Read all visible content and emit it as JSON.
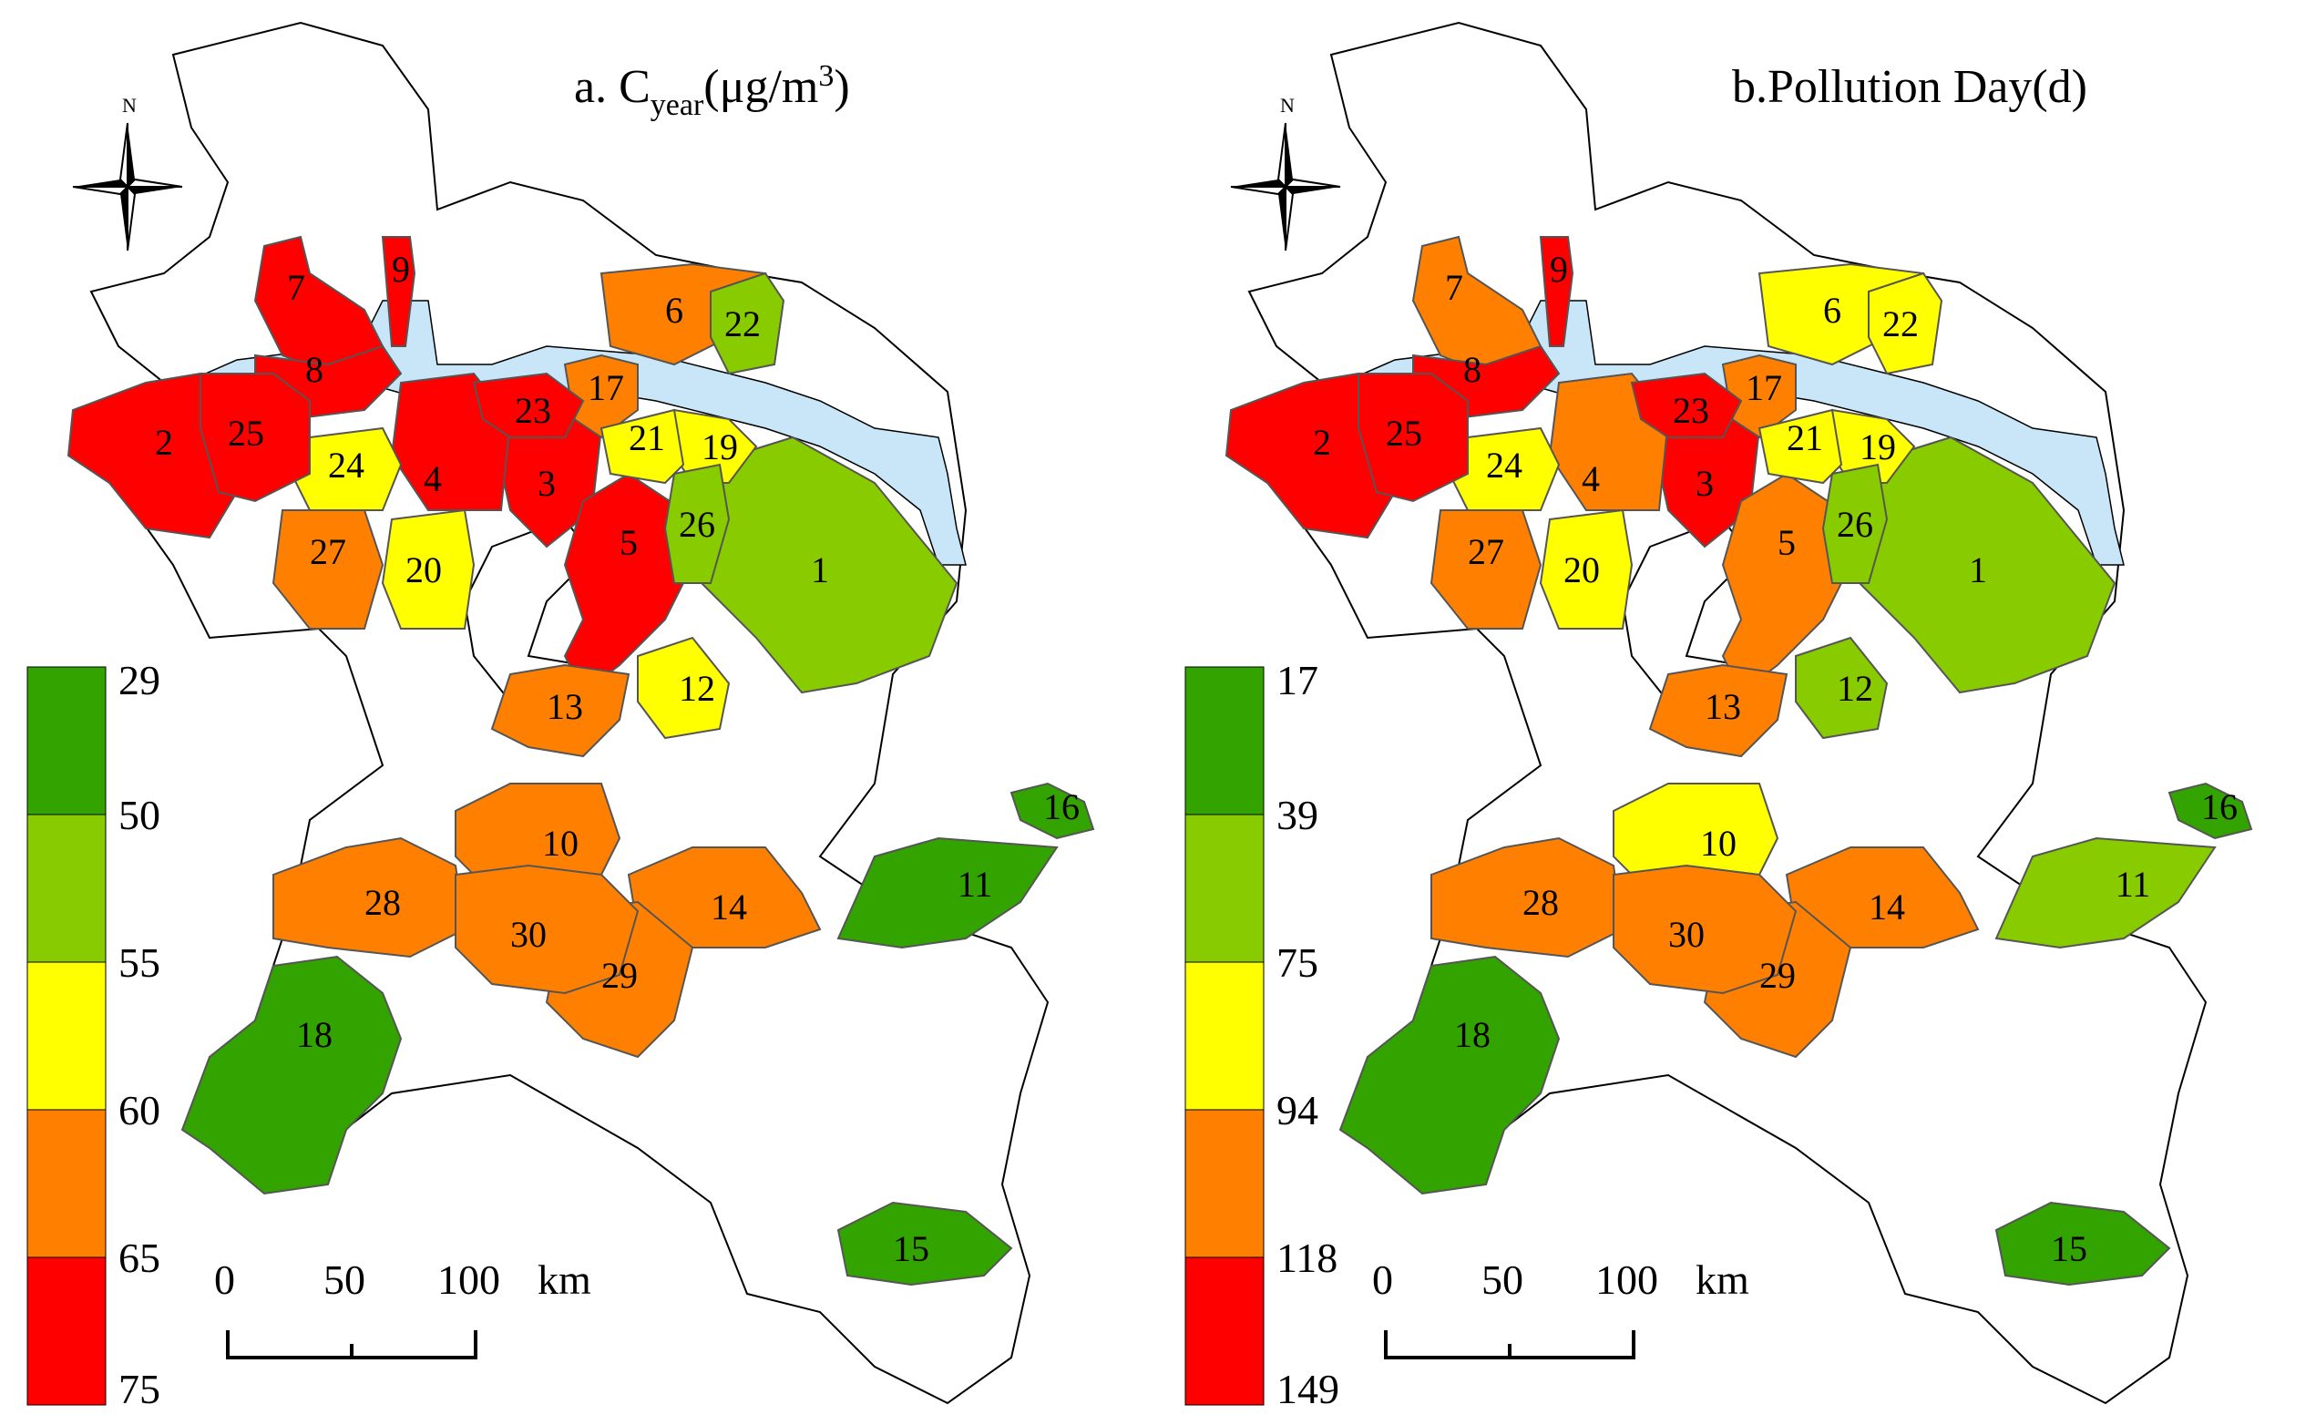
{
  "panels": [
    {
      "id": "a",
      "title_main": "a. C",
      "title_sub": "year",
      "title_unit": "(μg/m",
      "title_sup": "3",
      "title_close": ")",
      "north_label": "N",
      "legend": {
        "labels": [
          "29",
          "50",
          "55",
          "60",
          "65",
          "75"
        ],
        "colors": [
          "#33a300",
          "#88cc00",
          "#ffff00",
          "#ff8000",
          "#ff0000"
        ]
      },
      "scale_bar": {
        "labels": [
          "0",
          "50",
          "100"
        ],
        "unit": "km"
      },
      "regions": [
        {
          "id": "1",
          "label": "1",
          "class": "50-55"
        },
        {
          "id": "2",
          "label": "2",
          "class": "65-75"
        },
        {
          "id": "3",
          "label": "3",
          "class": "65-75"
        },
        {
          "id": "4",
          "label": "4",
          "class": "65-75"
        },
        {
          "id": "5",
          "label": "5",
          "class": "65-75"
        },
        {
          "id": "6",
          "label": "6",
          "class": "60-65"
        },
        {
          "id": "7",
          "label": "7",
          "class": "65-75"
        },
        {
          "id": "8",
          "label": "8",
          "class": "65-75"
        },
        {
          "id": "9",
          "label": "9",
          "class": "65-75"
        },
        {
          "id": "10",
          "label": "10",
          "class": "60-65"
        },
        {
          "id": "11",
          "label": "11",
          "class": "29-50"
        },
        {
          "id": "12",
          "label": "12",
          "class": "55-60"
        },
        {
          "id": "13",
          "label": "13",
          "class": "60-65"
        },
        {
          "id": "14",
          "label": "14",
          "class": "60-65"
        },
        {
          "id": "15",
          "label": "15",
          "class": "29-50"
        },
        {
          "id": "16",
          "label": "16",
          "class": "29-50"
        },
        {
          "id": "17",
          "label": "17",
          "class": "60-65"
        },
        {
          "id": "18",
          "label": "18",
          "class": "29-50"
        },
        {
          "id": "19",
          "label": "19",
          "class": "55-60"
        },
        {
          "id": "20",
          "label": "20",
          "class": "55-60"
        },
        {
          "id": "21",
          "label": "21",
          "class": "55-60"
        },
        {
          "id": "22",
          "label": "22",
          "class": "50-55"
        },
        {
          "id": "23",
          "label": "23",
          "class": "65-75"
        },
        {
          "id": "24",
          "label": "24",
          "class": "55-60"
        },
        {
          "id": "25",
          "label": "25",
          "class": "65-75"
        },
        {
          "id": "26",
          "label": "26",
          "class": "50-55"
        },
        {
          "id": "27",
          "label": "27",
          "class": "60-65"
        },
        {
          "id": "28",
          "label": "28",
          "class": "60-65"
        },
        {
          "id": "29",
          "label": "29",
          "class": "60-65"
        },
        {
          "id": "30",
          "label": "30",
          "class": "60-65"
        }
      ]
    },
    {
      "id": "b",
      "title_main": "b.Pollution Day(d)",
      "title_sub": "",
      "title_unit": "",
      "title_sup": "",
      "title_close": "",
      "north_label": "N",
      "legend": {
        "labels": [
          "17",
          "39",
          "75",
          "94",
          "118",
          "149"
        ],
        "colors": [
          "#33a300",
          "#88cc00",
          "#ffff00",
          "#ff8000",
          "#ff0000"
        ]
      },
      "scale_bar": {
        "labels": [
          "0",
          "50",
          "100"
        ],
        "unit": "km"
      },
      "regions": [
        {
          "id": "1",
          "label": "1",
          "class": "39-75"
        },
        {
          "id": "2",
          "label": "2",
          "class": "118-149"
        },
        {
          "id": "3",
          "label": "3",
          "class": "118-149"
        },
        {
          "id": "4",
          "label": "4",
          "class": "94-118"
        },
        {
          "id": "5",
          "label": "5",
          "class": "94-118"
        },
        {
          "id": "6",
          "label": "6",
          "class": "75-94"
        },
        {
          "id": "7",
          "label": "7",
          "class": "94-118"
        },
        {
          "id": "8",
          "label": "8",
          "class": "118-149"
        },
        {
          "id": "9",
          "label": "9",
          "class": "118-149"
        },
        {
          "id": "10",
          "label": "10",
          "class": "75-94"
        },
        {
          "id": "11",
          "label": "11",
          "class": "39-75"
        },
        {
          "id": "12",
          "label": "12",
          "class": "39-75"
        },
        {
          "id": "13",
          "label": "13",
          "class": "94-118"
        },
        {
          "id": "14",
          "label": "14",
          "class": "94-118"
        },
        {
          "id": "15",
          "label": "15",
          "class": "17-39"
        },
        {
          "id": "16",
          "label": "16",
          "class": "17-39"
        },
        {
          "id": "17",
          "label": "17",
          "class": "94-118"
        },
        {
          "id": "18",
          "label": "18",
          "class": "17-39"
        },
        {
          "id": "19",
          "label": "19",
          "class": "75-94"
        },
        {
          "id": "20",
          "label": "20",
          "class": "75-94"
        },
        {
          "id": "21",
          "label": "21",
          "class": "75-94"
        },
        {
          "id": "22",
          "label": "22",
          "class": "75-94"
        },
        {
          "id": "23",
          "label": "23",
          "class": "118-149"
        },
        {
          "id": "24",
          "label": "24",
          "class": "75-94"
        },
        {
          "id": "25",
          "label": "25",
          "class": "118-149"
        },
        {
          "id": "26",
          "label": "26",
          "class": "39-75"
        },
        {
          "id": "27",
          "label": "27",
          "class": "94-118"
        },
        {
          "id": "28",
          "label": "28",
          "class": "94-118"
        },
        {
          "id": "29",
          "label": "29",
          "class": "94-118"
        },
        {
          "id": "30",
          "label": "30",
          "class": "94-118"
        }
      ]
    }
  ]
}
